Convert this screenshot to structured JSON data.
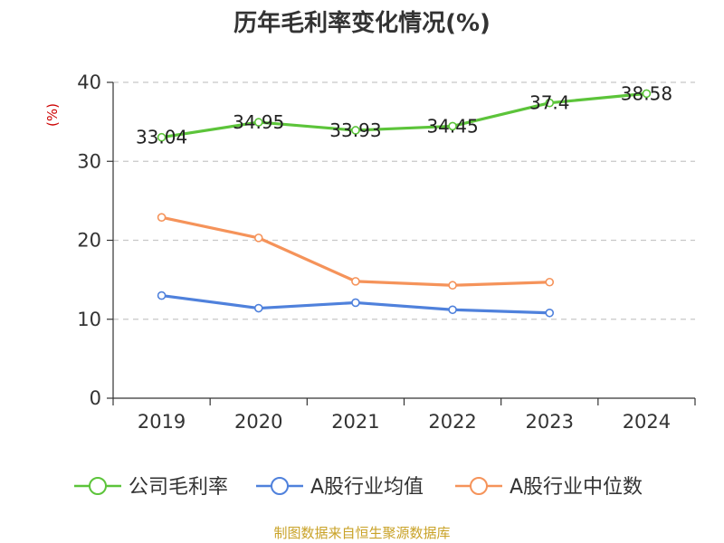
{
  "chart_data": {
    "type": "line",
    "title": "历年毛利率变化情况(%)",
    "ylabel": "(%)",
    "categories": [
      "2019",
      "2020",
      "2021",
      "2022",
      "2023",
      "2024"
    ],
    "ylim": [
      0,
      40
    ],
    "yticks": [
      0,
      10,
      20,
      30,
      40
    ],
    "grid": true,
    "legend_position": "bottom",
    "series": [
      {
        "name": "公司毛利率",
        "color": "#5cc43a",
        "values": [
          33.04,
          34.95,
          33.93,
          34.45,
          37.4,
          38.58
        ],
        "labels": [
          "33.04",
          "34.95",
          "33.93",
          "34.45",
          "37.4",
          "38.58"
        ]
      },
      {
        "name": "A股行业均值",
        "color": "#4f81dc",
        "values": [
          13.0,
          11.4,
          12.1,
          11.2,
          10.8,
          null
        ]
      },
      {
        "name": "A股行业中位数",
        "color": "#f5935a",
        "values": [
          22.9,
          20.3,
          14.8,
          14.3,
          14.7,
          null
        ]
      }
    ],
    "source": "制图数据来自恒生聚源数据库"
  }
}
